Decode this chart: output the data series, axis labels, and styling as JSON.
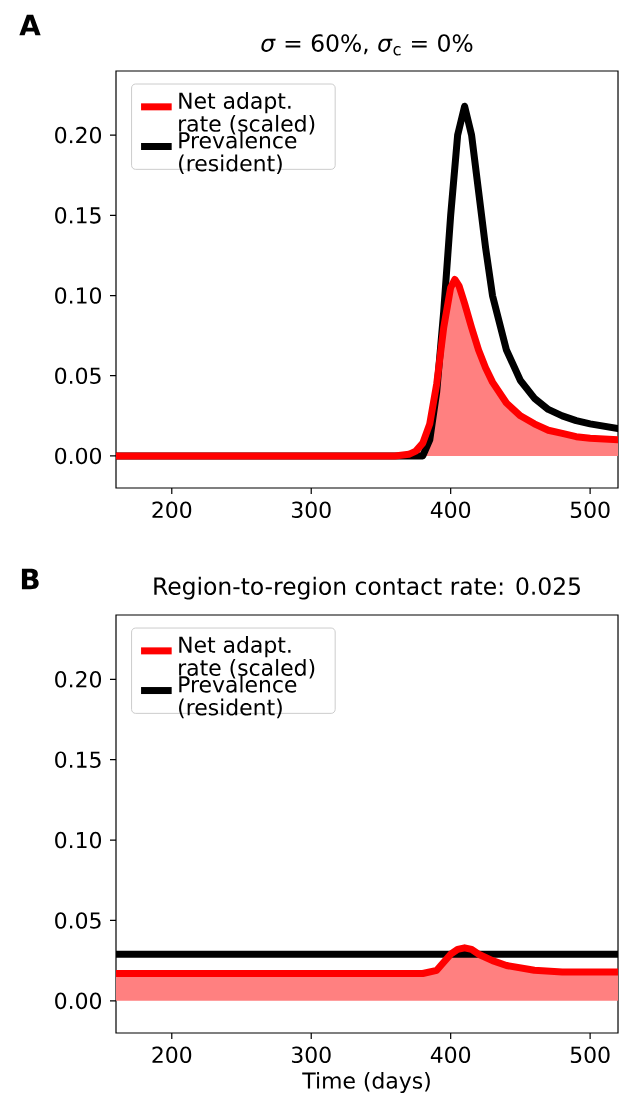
{
  "chart_data": [
    {
      "type": "line",
      "title": "*σ* = 60%, *σ*$_{c}$ = 0%",
      "annotations": [
        "A"
      ],
      "xlim": [
        160,
        520
      ],
      "ylim": [
        -0.02,
        0.24
      ],
      "xticks": [
        200,
        300,
        400,
        500
      ],
      "yticks": [
        {
          "value": 0,
          "label": "0.00"
        },
        {
          "value": 0.05,
          "label": "0.05"
        },
        {
          "value": 0.1,
          "label": "0.10"
        },
        {
          "value": 0.15,
          "label": "0.15"
        },
        {
          "value": 0.2,
          "label": "0.20"
        }
      ],
      "legend": "top left",
      "marker": "none",
      "line_style": "solid",
      "series": [
        {
          "type": "area",
          "name": "Net adapt. rate (scaled)",
          "color": "#ff0000",
          "x": [
            160,
            200,
            250,
            300,
            340,
            360,
            370,
            375,
            380,
            385,
            390,
            395,
            400,
            403,
            406,
            410,
            415,
            420,
            425,
            430,
            440,
            450,
            460,
            470,
            480,
            490,
            500,
            520
          ],
          "values": [
            0,
            0,
            0,
            0,
            0,
            0,
            0.001,
            0.003,
            0.008,
            0.02,
            0.045,
            0.08,
            0.105,
            0.11,
            0.106,
            0.095,
            0.08,
            0.066,
            0.055,
            0.046,
            0.033,
            0.025,
            0.02,
            0.016,
            0.014,
            0.012,
            0.011,
            0.01
          ]
        },
        {
          "type": "line",
          "name": "Prevalence (resident)",
          "color": "#000000",
          "x": [
            160,
            200,
            250,
            300,
            340,
            360,
            370,
            380,
            385,
            390,
            395,
            400,
            405,
            410,
            415,
            420,
            425,
            430,
            440,
            450,
            460,
            470,
            480,
            490,
            500,
            520
          ],
          "values": [
            0,
            0,
            0,
            0,
            0,
            0,
            0,
            0,
            0.01,
            0.04,
            0.09,
            0.15,
            0.2,
            0.218,
            0.2,
            0.165,
            0.13,
            0.1,
            0.066,
            0.047,
            0.036,
            0.029,
            0.025,
            0.022,
            0.02,
            0.017
          ]
        }
      ]
    },
    {
      "type": "line",
      "title": "Region-to-region contact rate: 0.025",
      "annotations": [
        "B"
      ],
      "xlabel": "Time (days)",
      "xlim": [
        160,
        520
      ],
      "ylim": [
        -0.02,
        0.24
      ],
      "xticks": [
        200,
        300,
        400,
        500
      ],
      "yticks": [
        {
          "value": 0,
          "label": "0.00"
        },
        {
          "value": 0.05,
          "label": "0.05"
        },
        {
          "value": 0.1,
          "label": "0.10"
        },
        {
          "value": 0.15,
          "label": "0.15"
        },
        {
          "value": 0.2,
          "label": "0.20"
        }
      ],
      "legend": "top left",
      "marker": "none",
      "line_style": "solid",
      "series": [
        {
          "type": "area",
          "name": "Net adapt. rate (scaled)",
          "color": "#ff0000",
          "x": [
            160,
            200,
            250,
            300,
            340,
            370,
            380,
            390,
            395,
            400,
            405,
            410,
            415,
            420,
            430,
            440,
            460,
            480,
            500,
            520
          ],
          "values": [
            0.017,
            0.017,
            0.017,
            0.017,
            0.017,
            0.017,
            0.017,
            0.019,
            0.024,
            0.029,
            0.032,
            0.033,
            0.032,
            0.029,
            0.025,
            0.022,
            0.019,
            0.018,
            0.018,
            0.018
          ]
        },
        {
          "type": "line",
          "name": "Prevalence (resident)",
          "color": "#000000",
          "x": [
            160,
            520
          ],
          "values": [
            0.029,
            0.029
          ]
        }
      ]
    }
  ]
}
